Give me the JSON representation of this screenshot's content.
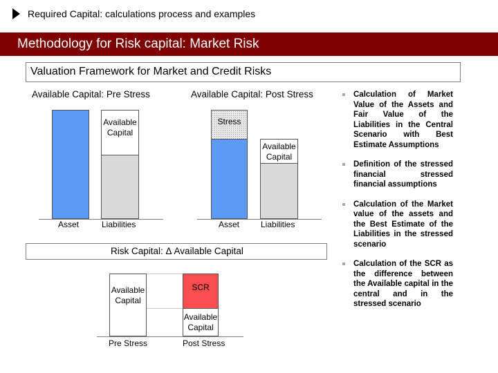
{
  "header": {
    "title": "Required Capital: calculations process and examples",
    "banner": "Methodology for Risk capital: Market Risk"
  },
  "framework": {
    "title": "Valuation Framework for Market and Credit Risks",
    "pre_stress": {
      "title": "Available Capital: Pre Stress",
      "available_capital": "Available Capital",
      "asset": "Asset",
      "liabilities": "Liabilities"
    },
    "post_stress": {
      "title": "Available Capital: Post Stress",
      "stress": "Stress",
      "available_capital": "Available Capital",
      "asset": "Asset",
      "liabilities": "Liabilities"
    }
  },
  "risk_capital": {
    "title": "Risk Capital: Δ Available Capital",
    "available_capital_pre": "Available Capital",
    "scr": "SCR",
    "available_capital_post": "Available Capital",
    "pre_stress": "Pre Stress",
    "post_stress": "Post Stress"
  },
  "bullets": [
    "Calculation of Market Value of the Assets and Fair Value of the Liabilities in the Central Scenario with Best Estimate Assumptions",
    "Definition of the stressed financial stressed financial assumptions",
    "Calculation of the Market value of the assets and the Best Estimate of the Liabilities in the stressed scenario",
    "Calculation of the SCR as the difference between the Available capital in the central and in the stressed scenario"
  ],
  "colors": {
    "banner": "#7f0000",
    "asset_bar": "#5b9bf5",
    "liability_bar": "#d9d9d9",
    "scr_bar": "#fa4d4d"
  }
}
